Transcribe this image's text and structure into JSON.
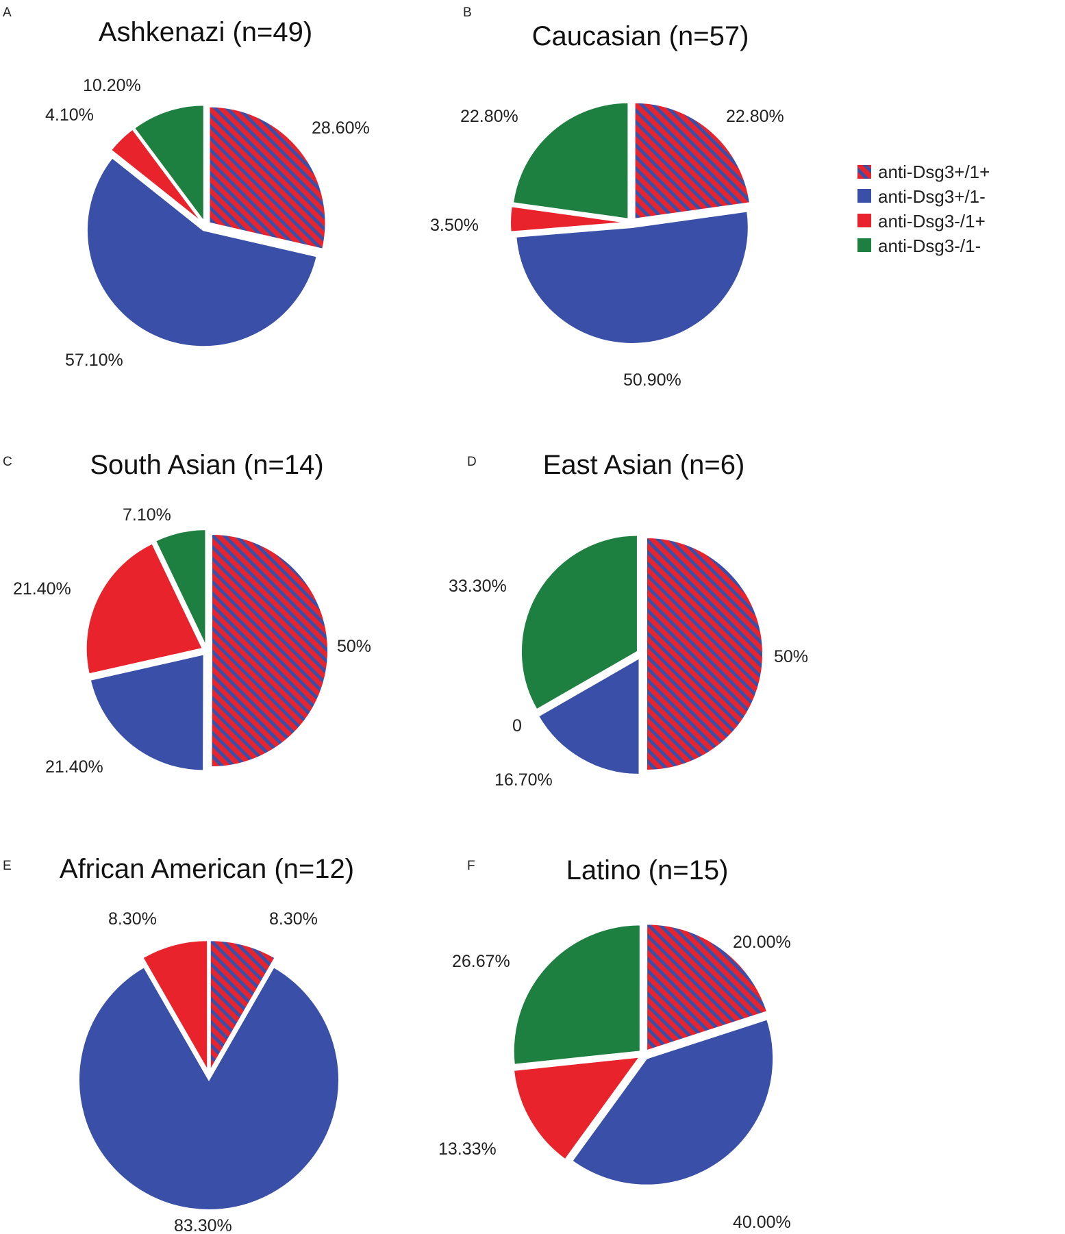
{
  "colors": {
    "dsg3_pos_dsg1_pos": "#e8232b",
    "dsg3_pos_dsg1_pos_stripe": "#3a50a8",
    "dsg3_pos_dsg1_neg": "#3a50a8",
    "dsg3_neg_dsg1_pos": "#e8232b",
    "dsg3_neg_dsg1_neg": "#1e8040"
  },
  "legend": {
    "items": [
      {
        "key": "dsg3_pos_dsg1_pos",
        "label": "anti-Dsg3+/1+"
      },
      {
        "key": "dsg3_pos_dsg1_neg",
        "label": "anti-Dsg3+/1-"
      },
      {
        "key": "dsg3_neg_dsg1_pos",
        "label": "anti-Dsg3-/1+"
      },
      {
        "key": "dsg3_neg_dsg1_neg",
        "label": "anti-Dsg3-/1-"
      }
    ]
  },
  "chart_data": [
    {
      "type": "pie",
      "panel": "A",
      "title": "Ashkenazi (n=49)",
      "slices": [
        {
          "key": "dsg3_pos_dsg1_pos",
          "value": 28.6,
          "label": "28.60%"
        },
        {
          "key": "dsg3_pos_dsg1_neg",
          "value": 57.1,
          "label": "57.10%"
        },
        {
          "key": "dsg3_neg_dsg1_pos",
          "value": 4.1,
          "label": "4.10%"
        },
        {
          "key": "dsg3_neg_dsg1_neg",
          "value": 10.2,
          "label": "10.20%"
        }
      ]
    },
    {
      "type": "pie",
      "panel": "B",
      "title": "Caucasian (n=57)",
      "slices": [
        {
          "key": "dsg3_pos_dsg1_pos",
          "value": 22.8,
          "label": "22.80%"
        },
        {
          "key": "dsg3_pos_dsg1_neg",
          "value": 50.9,
          "label": "50.90%"
        },
        {
          "key": "dsg3_neg_dsg1_pos",
          "value": 3.5,
          "label": "3.50%"
        },
        {
          "key": "dsg3_neg_dsg1_neg",
          "value": 22.8,
          "label": "22.80%"
        }
      ]
    },
    {
      "type": "pie",
      "panel": "C",
      "title": "South Asian (n=14)",
      "slices": [
        {
          "key": "dsg3_pos_dsg1_pos",
          "value": 50,
          "label": "50%"
        },
        {
          "key": "dsg3_pos_dsg1_neg",
          "value": 21.4,
          "label": "21.40%"
        },
        {
          "key": "dsg3_neg_dsg1_pos",
          "value": 21.4,
          "label": "21.40%"
        },
        {
          "key": "dsg3_neg_dsg1_neg",
          "value": 7.1,
          "label": "7.10%"
        }
      ]
    },
    {
      "type": "pie",
      "panel": "D",
      "title": "East Asian (n=6)",
      "slices": [
        {
          "key": "dsg3_pos_dsg1_pos",
          "value": 50,
          "label": "50%"
        },
        {
          "key": "dsg3_pos_dsg1_neg",
          "value": 16.7,
          "label": "16.70%"
        },
        {
          "key": "dsg3_neg_dsg1_pos",
          "value": 0,
          "label": "0"
        },
        {
          "key": "dsg3_neg_dsg1_neg",
          "value": 33.3,
          "label": "33.30%"
        }
      ]
    },
    {
      "type": "pie",
      "panel": "E",
      "title": "African American (n=12)",
      "slices": [
        {
          "key": "dsg3_pos_dsg1_pos",
          "value": 8.3,
          "label": "8.30%"
        },
        {
          "key": "dsg3_pos_dsg1_neg",
          "value": 83.3,
          "label": "83.30%"
        },
        {
          "key": "dsg3_neg_dsg1_pos",
          "value": 8.3,
          "label": "8.30%"
        }
      ]
    },
    {
      "type": "pie",
      "panel": "F",
      "title": "Latino (n=15)",
      "slices": [
        {
          "key": "dsg3_pos_dsg1_pos",
          "value": 20.0,
          "label": "20.00%"
        },
        {
          "key": "dsg3_pos_dsg1_neg",
          "value": 40.0,
          "label": "40.00%"
        },
        {
          "key": "dsg3_neg_dsg1_pos",
          "value": 13.33,
          "label": "13.33%"
        },
        {
          "key": "dsg3_neg_dsg1_neg",
          "value": 26.67,
          "label": "26.67%"
        }
      ]
    }
  ]
}
